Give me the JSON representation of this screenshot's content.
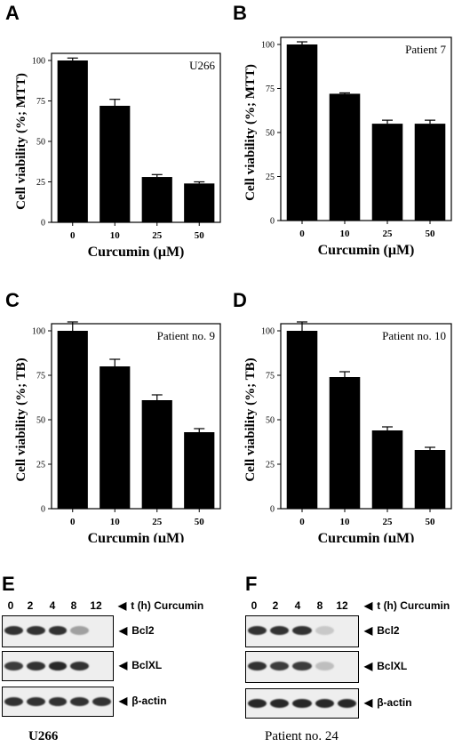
{
  "chart_data": [
    {
      "type": "bar",
      "panel": "A",
      "inset_label": "U266",
      "categories": [
        "0",
        "10",
        "25",
        "50"
      ],
      "values": [
        100,
        72,
        28,
        24
      ],
      "errors": [
        1.5,
        4,
        1.5,
        1
      ],
      "xlabel": "Curcumin (μM)",
      "ylabel": "Cell viability (%; MTT)",
      "ylim": [
        0,
        100
      ],
      "yticks": [
        "0",
        "25",
        "50",
        "75",
        "100"
      ]
    },
    {
      "type": "bar",
      "panel": "B",
      "inset_label": "Patient 7",
      "categories": [
        "0",
        "10",
        "25",
        "50"
      ],
      "values": [
        100,
        72,
        55,
        55
      ],
      "errors": [
        1.5,
        0.5,
        2,
        2
      ],
      "xlabel": "Curcumin (μM)",
      "ylabel": "Cell viability (%; MTT)",
      "ylim": [
        0,
        100
      ],
      "yticks": [
        "0",
        "25",
        "50",
        "75",
        "100"
      ]
    },
    {
      "type": "bar",
      "panel": "C",
      "inset_label": "Patient no. 9",
      "categories": [
        "0",
        "10",
        "25",
        "50"
      ],
      "values": [
        100,
        80,
        61,
        43
      ],
      "errors": [
        5,
        4,
        3,
        2
      ],
      "xlabel": "Curcumin (μM)",
      "ylabel": "Cell viability (%; TB)",
      "ylim": [
        0,
        100
      ],
      "yticks": [
        "0",
        "25",
        "50",
        "75",
        "100"
      ]
    },
    {
      "type": "bar",
      "panel": "D",
      "inset_label": "Patient no. 10",
      "categories": [
        "0",
        "10",
        "25",
        "50"
      ],
      "values": [
        100,
        74,
        44,
        33
      ],
      "errors": [
        5,
        3,
        2,
        1.5
      ],
      "xlabel": "Curcumin (μM)",
      "ylabel": "Cell viability (%; TB)",
      "ylim": [
        0,
        100
      ],
      "yticks": [
        "0",
        "25",
        "50",
        "75",
        "100"
      ]
    }
  ],
  "blots": [
    {
      "panel": "E",
      "lanes": [
        "0",
        "2",
        "4",
        "8",
        "12"
      ],
      "header": "t (h)  Curcumin",
      "caption": "U266",
      "rows": [
        {
          "label": "Bcl2",
          "intensity": [
            0.9,
            0.9,
            0.9,
            0.35,
            0
          ]
        },
        {
          "label": "BclXL",
          "intensity": [
            0.85,
            0.9,
            0.95,
            0.9,
            0
          ]
        },
        {
          "label": "β-actin",
          "intensity": [
            0.9,
            0.9,
            0.9,
            0.9,
            0.9
          ]
        }
      ]
    },
    {
      "panel": "F",
      "lanes": [
        "0",
        "2",
        "4",
        "8",
        "12"
      ],
      "header": "t (h)  Curcumin",
      "caption": "Patient no. 24",
      "rows": [
        {
          "label": "Bcl2",
          "intensity": [
            0.9,
            0.9,
            0.9,
            0.15,
            0
          ]
        },
        {
          "label": "BclXL",
          "intensity": [
            0.9,
            0.85,
            0.85,
            0.2,
            0
          ]
        },
        {
          "label": "β-actin",
          "intensity": [
            0.95,
            0.95,
            0.95,
            0.95,
            0.95
          ]
        }
      ]
    }
  ]
}
